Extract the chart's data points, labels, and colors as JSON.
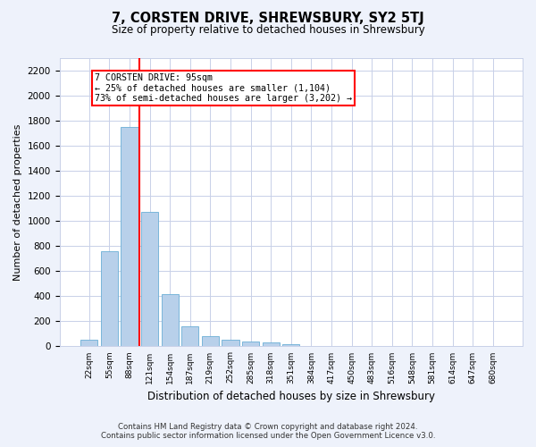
{
  "title": "7, CORSTEN DRIVE, SHREWSBURY, SY2 5TJ",
  "subtitle": "Size of property relative to detached houses in Shrewsbury",
  "xlabel": "Distribution of detached houses by size in Shrewsbury",
  "ylabel": "Number of detached properties",
  "footer_line1": "Contains HM Land Registry data © Crown copyright and database right 2024.",
  "footer_line2": "Contains public sector information licensed under the Open Government Licence v3.0.",
  "bar_labels": [
    "22sqm",
    "55sqm",
    "88sqm",
    "121sqm",
    "154sqm",
    "187sqm",
    "219sqm",
    "252sqm",
    "285sqm",
    "318sqm",
    "351sqm",
    "384sqm",
    "417sqm",
    "450sqm",
    "483sqm",
    "516sqm",
    "548sqm",
    "581sqm",
    "614sqm",
    "647sqm",
    "680sqm"
  ],
  "bar_values": [
    55,
    760,
    1750,
    1070,
    420,
    160,
    85,
    50,
    40,
    30,
    20,
    0,
    0,
    0,
    0,
    0,
    0,
    0,
    0,
    0,
    0
  ],
  "bar_color": "#b8d0ea",
  "bar_edgecolor": "#6aaed6",
  "vline_color": "red",
  "vline_x": 2.5,
  "annotation_text": "7 CORSTEN DRIVE: 95sqm\n← 25% of detached houses are smaller (1,104)\n73% of semi-detached houses are larger (3,202) →",
  "ylim": [
    0,
    2300
  ],
  "yticks": [
    0,
    200,
    400,
    600,
    800,
    1000,
    1200,
    1400,
    1600,
    1800,
    2000,
    2200
  ],
  "bg_color": "#eef2fb",
  "plot_bg_color": "#ffffff",
  "grid_color": "#c8d0e8"
}
